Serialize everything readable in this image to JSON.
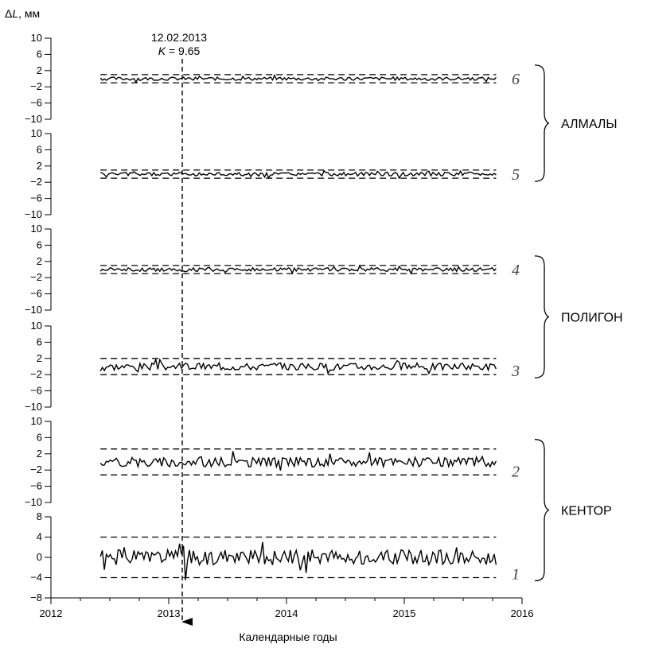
{
  "chart_data": {
    "type": "line",
    "ylabel_prefix": "Δ",
    "ylabel_var": "L",
    "ylabel_unit": ", мм",
    "xlabel": "Календарные годы",
    "xlim": [
      2012,
      2016
    ],
    "x_ticks": [
      2012,
      2013,
      2014,
      2015,
      2016
    ],
    "x_tick_labels": [
      "2012",
      "2013",
      "2014",
      "2015",
      "2016"
    ],
    "panels": [
      {
        "number": "6",
        "ylim": [
          -10,
          10
        ],
        "y_ticks": [
          10,
          6,
          2,
          -2,
          -6,
          -10
        ],
        "y_tick_labels": [
          "10",
          "6",
          "2",
          "−2",
          "−6",
          "−10"
        ],
        "threshold": 1.0,
        "amplitude": 0.4,
        "seed": 6
      },
      {
        "number": "5",
        "ylim": [
          -10,
          10
        ],
        "y_ticks": [
          10,
          6,
          2,
          -2,
          -6,
          -10
        ],
        "y_tick_labels": [
          "10",
          "6",
          "2",
          "−2",
          "−6",
          "−10"
        ],
        "threshold": 1.0,
        "amplitude": 0.45,
        "seed": 5
      },
      {
        "number": "4",
        "ylim": [
          -10,
          10
        ],
        "y_ticks": [
          10,
          6,
          2,
          -2,
          -6,
          -10
        ],
        "y_tick_labels": [
          "10",
          "6",
          "2",
          "−2",
          "−6",
          "−10"
        ],
        "threshold": 1.0,
        "amplitude": 0.45,
        "seed": 4
      },
      {
        "number": "3",
        "ylim": [
          -10,
          10
        ],
        "y_ticks": [
          10,
          6,
          2,
          -2,
          -6,
          -10
        ],
        "y_tick_labels": [
          "10",
          "6",
          "2",
          "−2",
          "−6",
          "−10"
        ],
        "threshold": 2.0,
        "amplitude": 0.9,
        "seed": 3
      },
      {
        "number": "2",
        "ylim": [
          -10,
          10
        ],
        "y_ticks": [
          10,
          6,
          2,
          -2,
          -6,
          -10
        ],
        "y_tick_labels": [
          "10",
          "6",
          "2",
          "−2",
          "−6",
          "−10"
        ],
        "threshold": 3.2,
        "amplitude": 1.2,
        "seed": 2
      },
      {
        "number": "1",
        "ylim": [
          -8,
          8
        ],
        "y_ticks": [
          8,
          4,
          0,
          -4,
          -8
        ],
        "y_tick_labels": [
          "8",
          "4",
          "0",
          "−4",
          "−8"
        ],
        "threshold": 4.0,
        "amplitude": 1.5,
        "seed": 1
      }
    ],
    "series_x_range": [
      2012.42,
      2015.78
    ],
    "event": {
      "date_label": "12.02.2013",
      "k_label_var": "K",
      "k_label_rest": " = 9.65",
      "x": 2013.115,
      "peak_panel1": 8.0
    },
    "groups": [
      {
        "label": "АЛМАЛЫ",
        "panels": [
          "6",
          "5"
        ]
      },
      {
        "label": "ПОЛИГОН",
        "panels": [
          "4",
          "3"
        ]
      },
      {
        "label": "КЕНТОР",
        "panels": [
          "2",
          "1"
        ]
      }
    ],
    "grid": false,
    "legend": "none"
  }
}
